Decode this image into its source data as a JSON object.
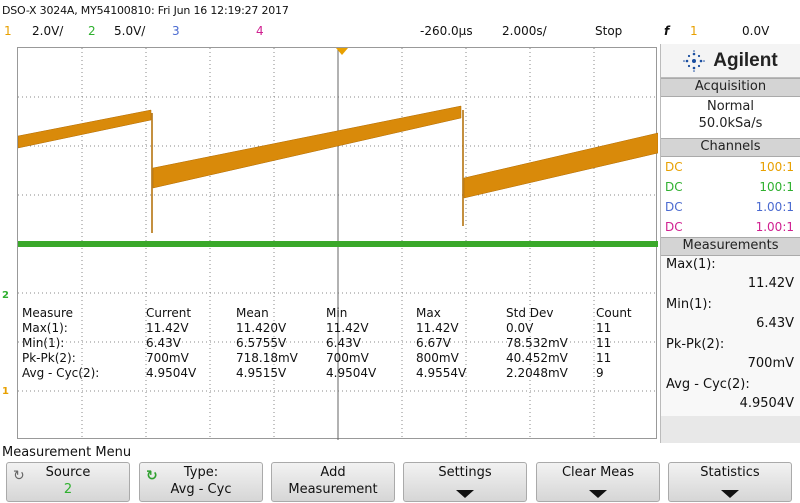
{
  "header": {
    "title": "DSO-X 3024A, MY54100810: Fri Jun 16 12:19:27 2017"
  },
  "status": {
    "ch1_num": "1",
    "ch1_scale": "2.0V/",
    "ch2_num": "2",
    "ch2_scale": "5.0V/",
    "ch3_num": "3",
    "ch4_num": "4",
    "time_offset": "-260.0µs",
    "time_scale": "2.000s/",
    "run_state": "Stop",
    "trigger_icon": "f",
    "trigger_ch": "1",
    "trigger_level": "0.0V"
  },
  "display": {
    "ch1_marker": "1",
    "ch2_marker": "2",
    "ch1_color": "#d98a0a",
    "ch2_color": "#3aa82a",
    "trace_model": {
      "ch1_levels_V": [
        7.5,
        8.5
      ],
      "ch1_sawtooth": "ramp 6.43V to 11.42V, period approx 5.5 div"
    }
  },
  "measure_table": {
    "headers": [
      "Measure",
      "Current",
      "Mean",
      "Min",
      "Max",
      "Std Dev",
      "Count"
    ],
    "rows": [
      [
        "Max(1):",
        "11.42V",
        "11.420V",
        "11.42V",
        "11.42V",
        "0.0V",
        "11"
      ],
      [
        "Min(1):",
        "6.43V",
        "6.5755V",
        "6.43V",
        "6.67V",
        "78.532mV",
        "11"
      ],
      [
        "Pk-Pk(2):",
        "700mV",
        "718.18mV",
        "700mV",
        "800mV",
        "40.452mV",
        "11"
      ],
      [
        "Avg - Cyc(2):",
        "4.9504V",
        "4.9515V",
        "4.9504V",
        "4.9554V",
        "2.2048mV",
        "9"
      ]
    ]
  },
  "panel": {
    "brand": "Agilent",
    "acquisition_title": "Acquisition",
    "acq_mode": "Normal",
    "acq_rate": "50.0kSa/s",
    "channels_title": "Channels",
    "channels": [
      {
        "coupling": "DC",
        "probe": "100:1",
        "color": "#e8a000"
      },
      {
        "coupling": "DC",
        "probe": "100:1",
        "color": "#2fb02f"
      },
      {
        "coupling": "DC",
        "probe": "1.00:1",
        "color": "#4a6ad0"
      },
      {
        "coupling": "DC",
        "probe": "1.00:1",
        "color": "#d02090"
      }
    ],
    "measurements_title": "Measurements",
    "measurements": [
      {
        "label": "Max(1):",
        "value": "11.42V"
      },
      {
        "label": "Min(1):",
        "value": "6.43V"
      },
      {
        "label": "Pk-Pk(2):",
        "value": "700mV"
      },
      {
        "label": "Avg - Cyc(2):",
        "value": "4.9504V"
      }
    ]
  },
  "menu": {
    "title": "Measurement Menu",
    "keys": [
      {
        "line1": "Source",
        "line2": "2"
      },
      {
        "line1": "Type:",
        "line2": "Avg - Cyc"
      },
      {
        "line1": "Add",
        "line2": "Measurement"
      },
      {
        "line1": "Settings",
        "line2": ""
      },
      {
        "line1": "Clear Meas",
        "line2": ""
      },
      {
        "line1": "Statistics",
        "line2": ""
      }
    ]
  }
}
